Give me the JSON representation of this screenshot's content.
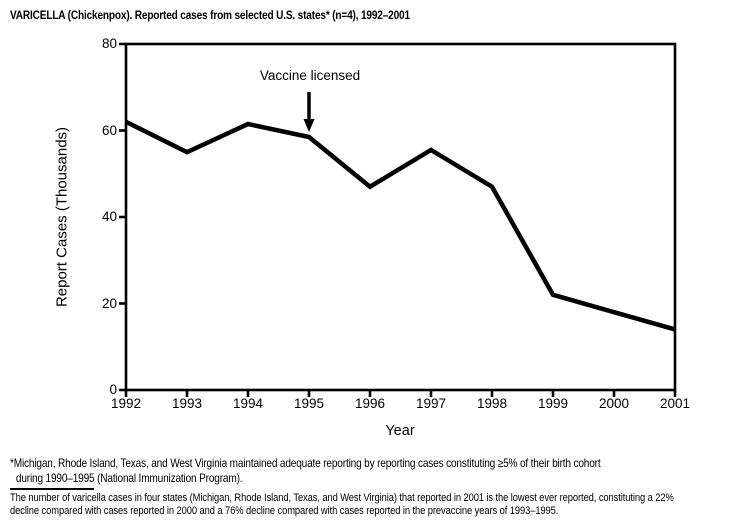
{
  "chart_data": {
    "type": "line",
    "title": "VARICELLA (Chickenpox). Reported cases from selected U.S. states* (n=4), 1992–2001",
    "xlabel": "Year",
    "ylabel": "Report Cases (Thousands)",
    "x": [
      1992,
      1993,
      1994,
      1995,
      1996,
      1997,
      1998,
      1999,
      2000,
      2001
    ],
    "values": [
      62,
      55,
      61.5,
      58.5,
      47,
      55.5,
      47,
      22,
      18,
      14
    ],
    "ylim": [
      0,
      80
    ],
    "yticks": [
      0,
      20,
      40,
      60,
      80
    ],
    "grid": false,
    "legend_position": "none",
    "line_color": "#000000",
    "background_color": "#ffffff",
    "annotation": {
      "text": "Vaccine licensed",
      "x": 1995,
      "arrow": "down"
    }
  },
  "footnotes": {
    "asterisk_note_line1": "*Michigan, Rhode Island, Texas, and West Virginia maintained adequate reporting by reporting cases constituting ≥5% of their birth cohort",
    "asterisk_note_line2": "during 1990–1995 (National Immunization Program).",
    "decline_note_line1": "The number of varicella cases in four states (Michigan, Rhode Island, Texas, and West Virginia) that reported in 2001 is the lowest ever reported, constituting a 22%",
    "decline_note_line2": "decline compared with cases reported in 2000 and a 76% decline compared with cases reported in the prevaccine years of 1993–1995."
  }
}
